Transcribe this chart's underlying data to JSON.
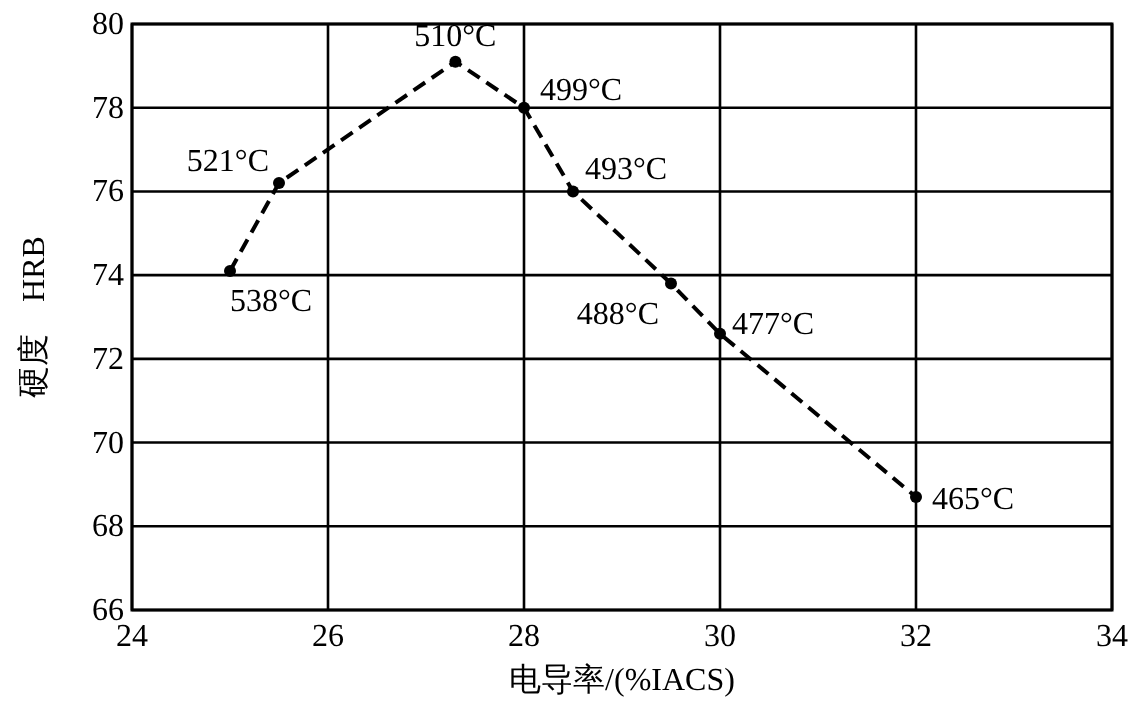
{
  "chart_data": {
    "type": "line",
    "xlabel": "电导率/(%IACS)",
    "ylabel": "硬度　HRB",
    "x": [
      25,
      25.5,
      27.3,
      28,
      28.5,
      29.5,
      30,
      32
    ],
    "series": [
      {
        "color": "#000000",
        "values": [
          74.1,
          76.2,
          79.1,
          78,
          76,
          73.8,
          72.6,
          68.7
        ]
      }
    ],
    "xlim": [
      24,
      34
    ],
    "xticks": [
      24,
      26,
      28,
      30,
      32,
      34
    ],
    "ylim": [
      66,
      80
    ],
    "yticks": [
      66,
      68,
      70,
      72,
      74,
      76,
      78,
      80
    ],
    "grid": true,
    "marker": "circle",
    "line_style": "dashed",
    "annotations": [
      {
        "text": "538°C",
        "x": 25,
        "y": 74.1
      },
      {
        "text": "521°C",
        "x": 25.5,
        "y": 76.2
      },
      {
        "text": "510°C",
        "x": 27.3,
        "y": 79.1
      },
      {
        "text": "499°C",
        "x": 28,
        "y": 78
      },
      {
        "text": "493°C",
        "x": 28.5,
        "y": 76
      },
      {
        "text": "488°C",
        "x": 29.5,
        "y": 73.8
      },
      {
        "text": "477°C",
        "x": 30,
        "y": 72.6
      },
      {
        "text": "465°C",
        "x": 32,
        "y": 68.7
      }
    ]
  }
}
